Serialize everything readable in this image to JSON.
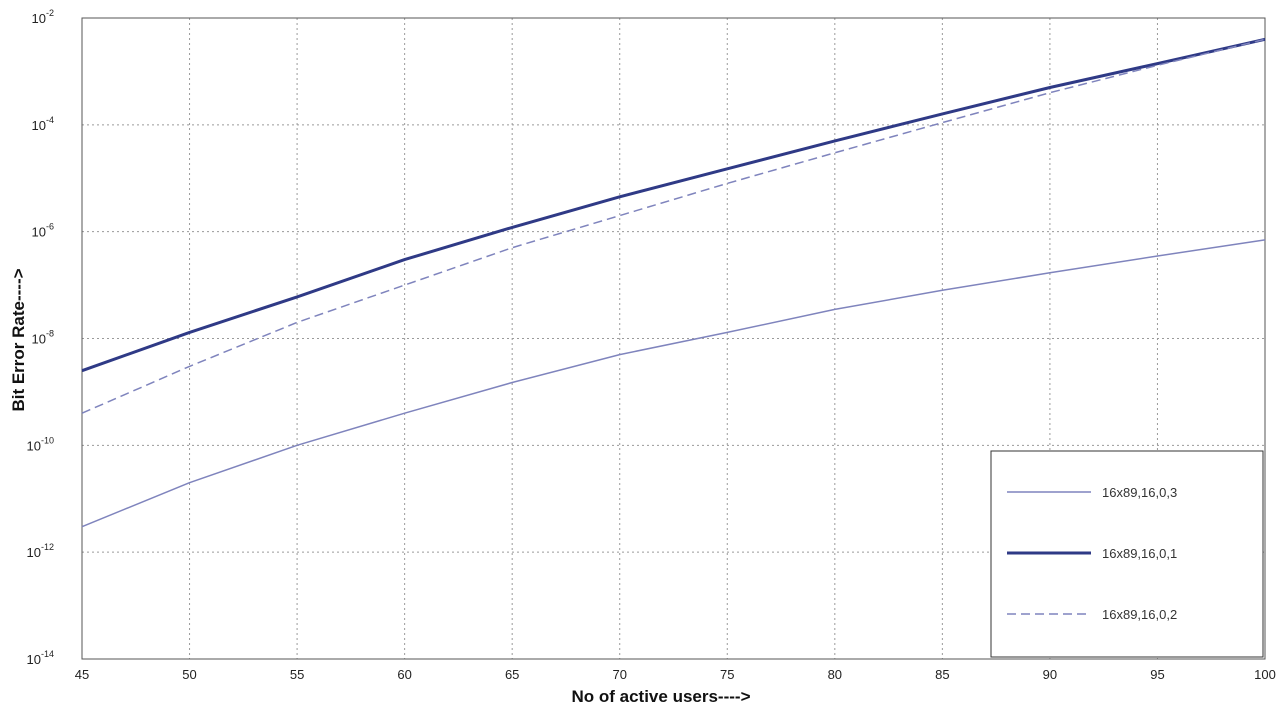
{
  "chart_data": {
    "type": "line",
    "title": "",
    "xlabel": "No of active users---->",
    "ylabel": "Bit Error Rate---->",
    "xlim": [
      45,
      100
    ],
    "ylim": [
      1e-14,
      0.01
    ],
    "yscale": "log",
    "grid": true,
    "x_ticks": [
      "45",
      "50",
      "55",
      "60",
      "65",
      "70",
      "75",
      "80",
      "85",
      "90",
      "95",
      "100"
    ],
    "y_ticks": [
      {
        "base": "10",
        "exp": "-2"
      },
      {
        "base": "10",
        "exp": "-4"
      },
      {
        "base": "10",
        "exp": "-6"
      },
      {
        "base": "10",
        "exp": "-8"
      },
      {
        "base": "10",
        "exp": "-10"
      },
      {
        "base": "10",
        "exp": "-12"
      },
      {
        "base": "10",
        "exp": "-14"
      }
    ],
    "legend_position": "bottom-right",
    "x": [
      45,
      50,
      55,
      60,
      65,
      70,
      75,
      80,
      85,
      90,
      95,
      100
    ],
    "series": [
      {
        "name": "16x89,16,0,3",
        "style": "thin-solid",
        "color": "#7f84bd",
        "values": [
          3e-12,
          2e-11,
          1e-10,
          4e-10,
          1.5e-09,
          5e-09,
          1.3e-08,
          3.5e-08,
          8e-08,
          1.7e-07,
          3.5e-07,
          7e-07
        ]
      },
      {
        "name": "16x89,16,0,1",
        "style": "thick-solid",
        "color": "#2f3a86",
        "values": [
          2.5e-09,
          1.3e-08,
          6e-08,
          3e-07,
          1.2e-06,
          4.5e-06,
          1.5e-05,
          5e-05,
          0.00016,
          0.0005,
          0.0014,
          0.004
        ]
      },
      {
        "name": "16x89,16,0,2",
        "style": "dashed",
        "color": "#7f84bd",
        "values": [
          4e-10,
          3e-09,
          2e-08,
          1e-07,
          5e-07,
          2e-06,
          8e-06,
          3e-05,
          0.00011,
          0.0004,
          0.0013,
          0.004
        ]
      }
    ]
  }
}
